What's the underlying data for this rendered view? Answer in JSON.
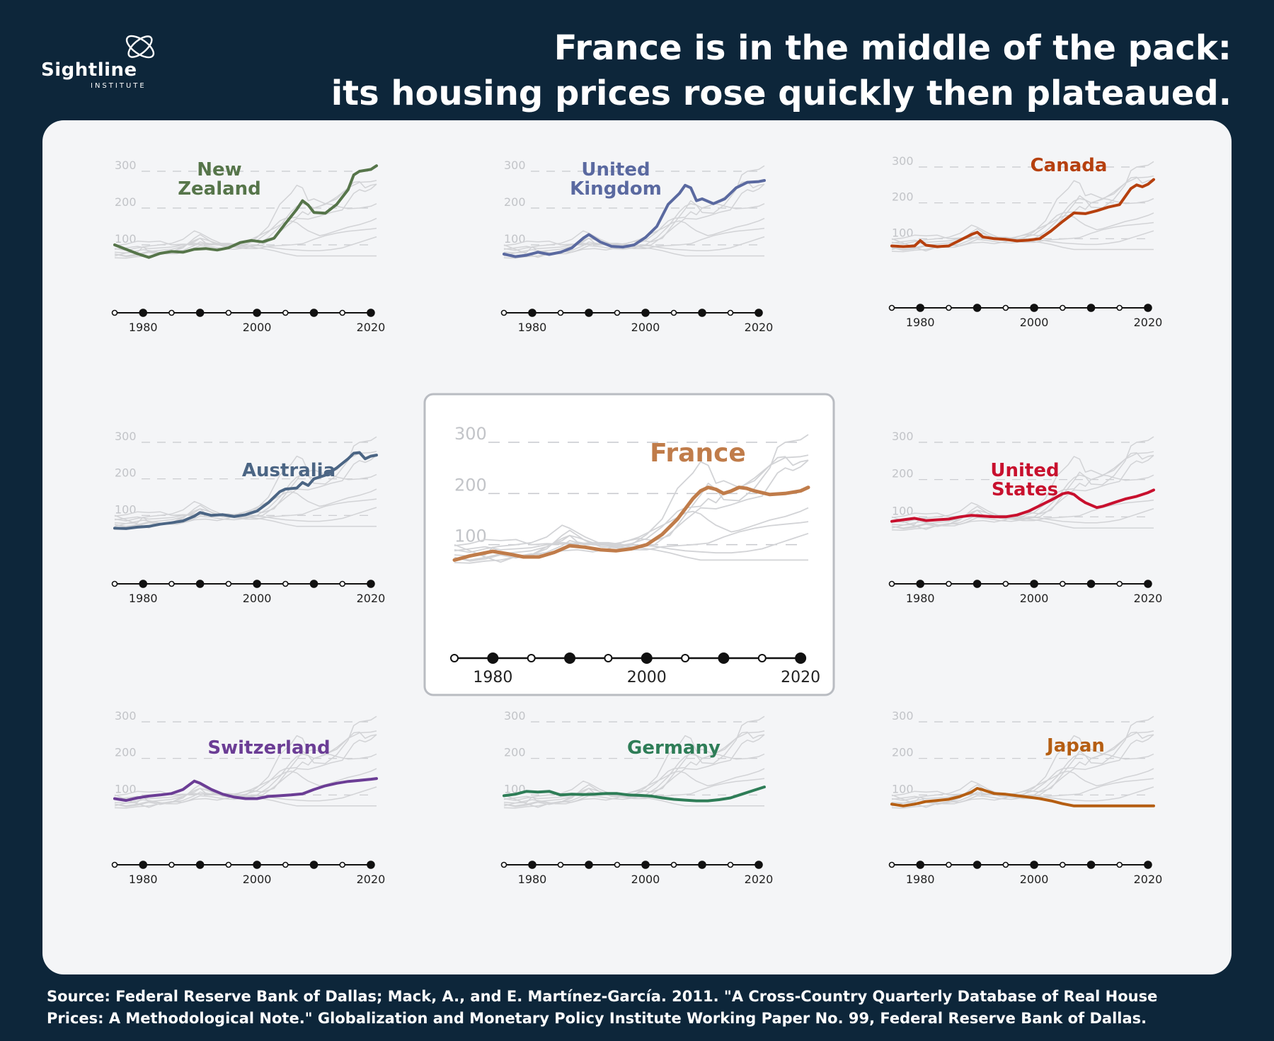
{
  "header": {
    "logo_name": "Sightline",
    "logo_sub": "INSTITUTE",
    "title_line1": "France is in the middle of the pack:",
    "title_line2": "its housing prices rose quickly then plateaued."
  },
  "source": {
    "line1": "Source: Federal Reserve Bank of Dallas; Mack, A., and E. Martínez-García. 2011. \"A Cross-Country Quarterly Database of Real House",
    "line2": "Prices: A Methodological Note.\" Globalization and Monetary Policy Institute Working Paper No. 99, Federal Reserve Bank of Dallas."
  },
  "chart_data": {
    "type": "line",
    "layout": "small multiples, 3x3 grid, France highlighted in center",
    "xlim": [
      1975,
      2021
    ],
    "ylim": [
      0,
      300
    ],
    "y_ticks": [
      100,
      200,
      300
    ],
    "x_tick_labels": [
      "1980",
      "2000",
      "2020"
    ],
    "x_markers": [
      1975,
      1980,
      1985,
      1990,
      1995,
      2000,
      2005,
      2010,
      2015,
      2020
    ],
    "highlight": "France",
    "grid": "dashed horizontal lines at y ticks",
    "series": [
      {
        "name": "New Zealand",
        "label_lines": [
          "New",
          "Zealand"
        ],
        "color": "#56754a",
        "x": [
          1975,
          1977,
          1979,
          1981,
          1983,
          1985,
          1987,
          1989,
          1991,
          1993,
          1995,
          1997,
          1999,
          2001,
          2003,
          2005,
          2007,
          2008,
          2009,
          2010,
          2012,
          2014,
          2016,
          2017,
          2018,
          2020,
          2021
        ],
        "y": [
          100,
          88,
          76,
          66,
          77,
          82,
          80,
          88,
          90,
          86,
          92,
          106,
          112,
          108,
          118,
          158,
          197,
          220,
          208,
          188,
          186,
          210,
          250,
          290,
          300,
          305,
          315
        ]
      },
      {
        "name": "United Kingdom",
        "label_lines": [
          "United",
          "Kingdom"
        ],
        "color": "#5a69a0",
        "x": [
          1975,
          1977,
          1979,
          1981,
          1983,
          1985,
          1987,
          1989,
          1990,
          1992,
          1994,
          1996,
          1998,
          2000,
          2002,
          2004,
          2006,
          2007,
          2008,
          2009,
          2010,
          2012,
          2014,
          2016,
          2018,
          2020,
          2021
        ],
        "y": [
          75,
          68,
          72,
          80,
          74,
          80,
          92,
          118,
          128,
          108,
          96,
          94,
          100,
          120,
          150,
          210,
          240,
          262,
          255,
          220,
          225,
          212,
          225,
          255,
          270,
          272,
          275
        ]
      },
      {
        "name": "Canada",
        "label_lines": [
          "Canada"
        ],
        "color": "#b6400e",
        "x": [
          1975,
          1977,
          1979,
          1980,
          1981,
          1983,
          1985,
          1987,
          1989,
          1990,
          1991,
          1993,
          1995,
          1997,
          1999,
          2001,
          2003,
          2005,
          2007,
          2009,
          2011,
          2013,
          2015,
          2017,
          2018,
          2019,
          2020,
          2021
        ],
        "y": [
          80,
          78,
          80,
          95,
          82,
          78,
          80,
          96,
          112,
          118,
          105,
          100,
          98,
          94,
          96,
          100,
          122,
          148,
          172,
          170,
          178,
          188,
          195,
          240,
          250,
          245,
          252,
          265
        ]
      },
      {
        "name": "Australia",
        "label_lines": [
          "Australia"
        ],
        "color": "#4b6584",
        "x": [
          1975,
          1977,
          1979,
          1981,
          1983,
          1985,
          1987,
          1989,
          1990,
          1992,
          1994,
          1996,
          1998,
          2000,
          2002,
          2004,
          2005,
          2007,
          2008,
          2009,
          2010,
          2012,
          2014,
          2016,
          2017,
          2018,
          2019,
          2020,
          2021
        ],
        "y": [
          65,
          64,
          68,
          70,
          76,
          80,
          85,
          98,
          108,
          100,
          102,
          97,
          102,
          112,
          135,
          165,
          172,
          175,
          190,
          182,
          200,
          210,
          230,
          255,
          270,
          272,
          255,
          262,
          265
        ]
      },
      {
        "name": "France",
        "label_lines": [
          "France"
        ],
        "color": "#c07c4a",
        "x": [
          1975,
          1977,
          1979,
          1980,
          1982,
          1984,
          1986,
          1988,
          1990,
          1992,
          1994,
          1996,
          1998,
          2000,
          2002,
          2004,
          2006,
          2007,
          2008,
          2009,
          2010,
          2011,
          2012,
          2013,
          2014,
          2016,
          2018,
          2020,
          2021
        ],
        "y": [
          70,
          78,
          84,
          87,
          82,
          76,
          76,
          85,
          98,
          95,
          90,
          88,
          92,
          100,
          120,
          150,
          190,
          205,
          212,
          208,
          200,
          205,
          212,
          210,
          205,
          198,
          200,
          205,
          212
        ]
      },
      {
        "name": "United States",
        "label_lines": [
          "United",
          "States"
        ],
        "color": "#c8102e",
        "x": [
          1975,
          1977,
          1979,
          1981,
          1983,
          1985,
          1987,
          1989,
          1991,
          1993,
          1995,
          1997,
          1999,
          2001,
          2003,
          2005,
          2006,
          2007,
          2008,
          2009,
          2011,
          2012,
          2014,
          2016,
          2018,
          2020,
          2021
        ],
        "y": [
          88,
          92,
          96,
          90,
          92,
          94,
          100,
          104,
          102,
          100,
          100,
          105,
          115,
          130,
          145,
          162,
          165,
          160,
          148,
          138,
          125,
          128,
          138,
          148,
          155,
          165,
          172
        ]
      },
      {
        "name": "Switzerland",
        "label_lines": [
          "Switzerland"
        ],
        "color": "#6b3d95",
        "x": [
          1975,
          1977,
          1979,
          1981,
          1983,
          1985,
          1987,
          1989,
          1990,
          1992,
          1994,
          1996,
          1998,
          2000,
          2002,
          2004,
          2006,
          2008,
          2010,
          2012,
          2014,
          2016,
          2018,
          2020,
          2021
        ],
        "y": [
          90,
          85,
          92,
          97,
          100,
          104,
          115,
          138,
          132,
          115,
          102,
          94,
          90,
          90,
          96,
          98,
          100,
          103,
          115,
          125,
          132,
          137,
          140,
          143,
          145
        ]
      },
      {
        "name": "Germany",
        "label_lines": [
          "Germany"
        ],
        "color": "#2e7d57",
        "x": [
          1975,
          1977,
          1979,
          1981,
          1983,
          1985,
          1987,
          1989,
          1991,
          1993,
          1995,
          1997,
          1999,
          2001,
          2003,
          2005,
          2007,
          2009,
          2011,
          2013,
          2015,
          2017,
          2019,
          2021
        ],
        "y": [
          98,
          102,
          110,
          108,
          110,
          100,
          102,
          101,
          102,
          104,
          104,
          100,
          99,
          97,
          92,
          88,
          86,
          84,
          84,
          87,
          92,
          102,
          112,
          122
        ]
      },
      {
        "name": "Japan",
        "label_lines": [
          "Japan"
        ],
        "color": "#b55e12",
        "x": [
          1975,
          1977,
          1979,
          1981,
          1983,
          1985,
          1987,
          1989,
          1990,
          1991,
          1993,
          1995,
          1997,
          1999,
          2001,
          2003,
          2005,
          2007,
          2009,
          2011,
          2013,
          2015,
          2017,
          2019,
          2021
        ],
        "y": [
          75,
          70,
          75,
          82,
          85,
          88,
          96,
          108,
          118,
          114,
          104,
          102,
          98,
          94,
          90,
          84,
          76,
          70,
          70,
          70,
          70,
          70,
          70,
          70,
          70
        ]
      }
    ]
  }
}
